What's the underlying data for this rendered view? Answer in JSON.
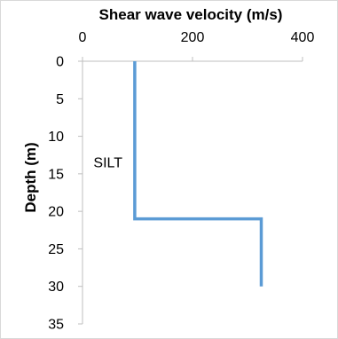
{
  "chart_data": {
    "type": "line",
    "title": "",
    "xlabel": "Shear wave velocity (m/s)",
    "ylabel": "Depth (m)",
    "x_axis_position": "top",
    "y_axis_inverted": true,
    "xlim": [
      0,
      400
    ],
    "ylim": [
      0,
      35
    ],
    "xticks": [
      "0",
      "200",
      "400"
    ],
    "yticks": [
      "0",
      "5",
      "10",
      "15",
      "20",
      "25",
      "30",
      "35"
    ],
    "grid": false,
    "legend": "none",
    "series": [
      {
        "color": "#5b9bd5",
        "points": [
          {
            "x": 95,
            "y": 0
          },
          {
            "x": 95,
            "y": 21
          },
          {
            "x": 325,
            "y": 21
          },
          {
            "x": 325,
            "y": 30
          }
        ]
      }
    ],
    "annotations": [
      {
        "text": "SILT",
        "x": 20,
        "y": 13.5
      }
    ]
  }
}
